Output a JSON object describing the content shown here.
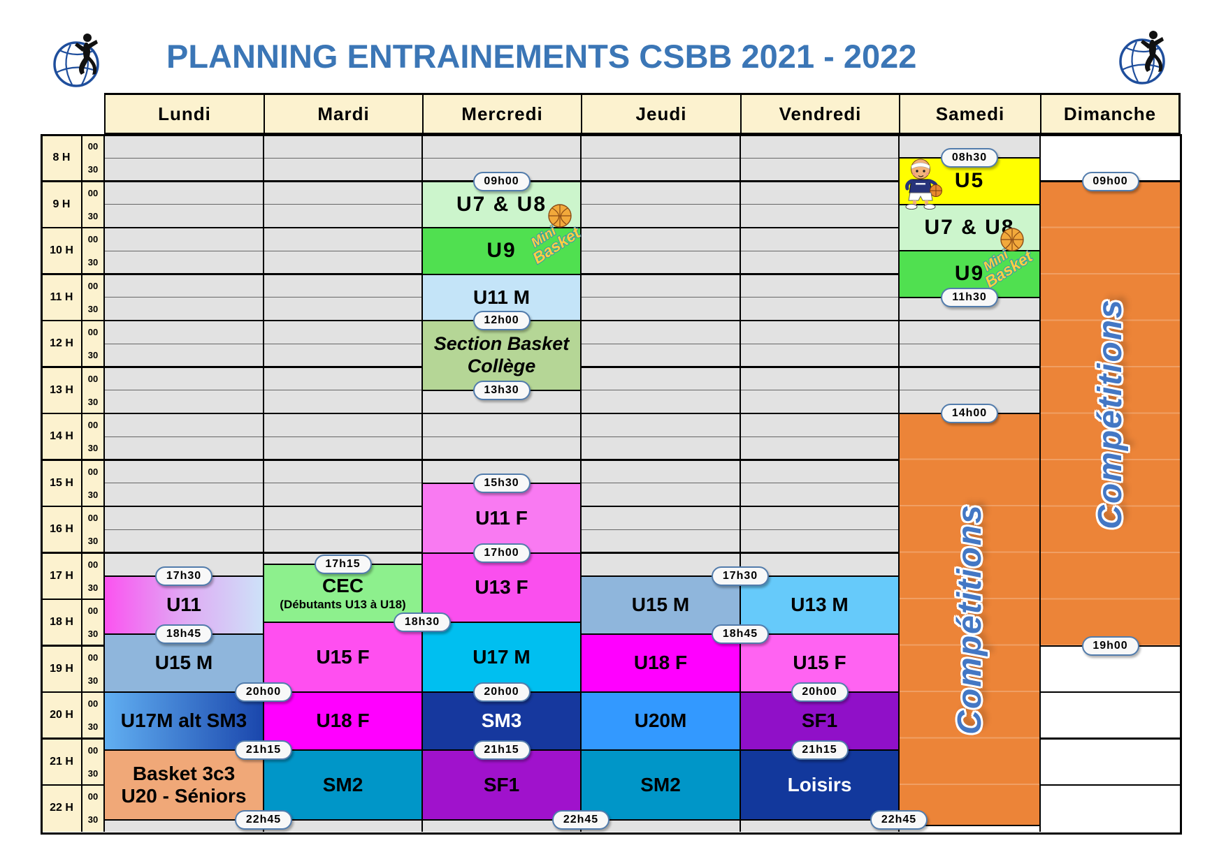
{
  "title": "PLANNING ENTRAINEMENTS CSBB 2021 - 2022",
  "days": [
    "Lundi",
    "Mardi",
    "Mercredi",
    "Jeudi",
    "Vendredi",
    "Samedi",
    "Dimanche"
  ],
  "hour_rows": [
    "8 H",
    "9 H",
    "10 H",
    "11 H",
    "12 H",
    "13 H",
    "14 H",
    "15 H",
    "16 H",
    "17 H",
    "18 H",
    "19 H",
    "20 H",
    "21 H",
    "22 H"
  ],
  "half_hour_labels": [
    "00",
    "30"
  ],
  "palette": {
    "title_blue": "#3B76B6",
    "header_cream": "#FCF2CF",
    "grid_grey": "#E2E2E2",
    "sunday_white": "#FFFFFF",
    "competitions_orange": "#EC8438",
    "competitions_text_blue": "#4377C4",
    "badge_border_blue": "#527CAC"
  },
  "sessions": [
    {
      "day": 0,
      "start": 17.5,
      "end": 18.75,
      "label": "U11",
      "bg": "linear-gradient(90deg,#FB52F0 0%,#E0A9F4 50%,#CDE2F8 100%)"
    },
    {
      "day": 0,
      "start": 18.75,
      "end": 20,
      "label": "U15 M",
      "bg": "#8FB6DC"
    },
    {
      "day": 0,
      "start": 20,
      "end": 21.25,
      "label": "U17M alt SM3",
      "bg": "linear-gradient(90deg,#62B0F2 0%,#1A46AC 100%)"
    },
    {
      "day": 0,
      "start": 21.25,
      "end": 22.75,
      "label": "Basket 3c3",
      "label2": "U20 - Séniors",
      "bg": "#F0A878"
    },
    {
      "day": 1,
      "start": 17.25,
      "end": 18.5,
      "label": "CEC",
      "label2": "(Débutants U13 à U18)",
      "bg": "#8DF08D",
      "style": "cec"
    },
    {
      "day": 1,
      "start": 18.5,
      "end": 20,
      "label": "U15 F",
      "bg": "#FF4FF0"
    },
    {
      "day": 1,
      "start": 20,
      "end": 21.25,
      "label": "U18 F",
      "bg": "#FF00FF"
    },
    {
      "day": 1,
      "start": 21.25,
      "end": 22.75,
      "label": "SM2",
      "bg": "#0096C8"
    },
    {
      "day": 2,
      "start": 9,
      "end": 10,
      "label": "U7 & U8",
      "bg": "#CCF5CC",
      "style": "deco"
    },
    {
      "day": 2,
      "start": 10,
      "end": 11,
      "label": "U9",
      "bg": "#50E050",
      "style": "deco"
    },
    {
      "day": 2,
      "start": 11,
      "end": 12,
      "label": "U11 M",
      "bg": "#C4E4F8"
    },
    {
      "day": 2,
      "start": 12,
      "end": 13.5,
      "label": "Section Basket",
      "label2": "Collège",
      "bg": "#B5D696",
      "style": "italic"
    },
    {
      "day": 2,
      "start": 15.5,
      "end": 17,
      "label": "U11 F",
      "bg": "#F97AF2"
    },
    {
      "day": 2,
      "start": 17,
      "end": 18.5,
      "label": "U13 F",
      "bg": "#FA4FEE"
    },
    {
      "day": 2,
      "start": 18.5,
      "end": 20,
      "label": "U17 M",
      "bg": "#00BFF0"
    },
    {
      "day": 2,
      "start": 20,
      "end": 21.25,
      "label": "SM3",
      "bg": "#16389E",
      "color": "#FFFFFF"
    },
    {
      "day": 2,
      "start": 21.25,
      "end": 22.75,
      "label": "SF1",
      "bg": "#A012CC"
    },
    {
      "day": 3,
      "start": 17.5,
      "end": 18.75,
      "label": "U15 M",
      "bg": "#8FB6DC"
    },
    {
      "day": 3,
      "start": 18.75,
      "end": 20,
      "label": "U18 F",
      "bg": "#FF00FF"
    },
    {
      "day": 3,
      "start": 20,
      "end": 21.25,
      "label": "U20M",
      "bg": "#3399FF"
    },
    {
      "day": 3,
      "start": 21.25,
      "end": 22.75,
      "label": "SM2",
      "bg": "#0096C8"
    },
    {
      "day": 4,
      "start": 17.5,
      "end": 18.75,
      "label": "U13 M",
      "bg": "#66CAFA"
    },
    {
      "day": 4,
      "start": 18.75,
      "end": 20,
      "label": "U15 F",
      "bg": "#FF63F2"
    },
    {
      "day": 4,
      "start": 20,
      "end": 21.25,
      "label": "SF1",
      "bg": "#9010C8"
    },
    {
      "day": 4,
      "start": 21.25,
      "end": 22.75,
      "label": "Loisirs",
      "bg": "#12389C",
      "color": "#FFFFFF"
    },
    {
      "day": 5,
      "start": 8.5,
      "end": 9.5,
      "label": "U5",
      "bg": "#FFFF00",
      "style": "deco"
    },
    {
      "day": 5,
      "start": 9.5,
      "end": 10.5,
      "label": "U7 & U8",
      "bg": "#CCF5CC",
      "style": "deco"
    },
    {
      "day": 5,
      "start": 10.5,
      "end": 11.5,
      "label": "U9",
      "bg": "#50E050",
      "style": "deco"
    },
    {
      "day": 5,
      "start": 14,
      "end": 22.87,
      "label": "Compétitions",
      "bg": "#EC8438",
      "style": "vertical"
    },
    {
      "day": 6,
      "start": 9,
      "end": 19,
      "label": "Compétitions",
      "bg": "#EC8438",
      "style": "vertical"
    }
  ],
  "badges": [
    {
      "day": 0,
      "time": "17h30",
      "anchor": "center"
    },
    {
      "day": 0,
      "time": "18h45",
      "anchor": "center"
    },
    {
      "day": 0,
      "time": "20h00",
      "anchor": "right"
    },
    {
      "day": 0,
      "time": "21h15",
      "anchor": "right"
    },
    {
      "day": 0,
      "time": "22h45",
      "anchor": "right"
    },
    {
      "day": 1,
      "time": "17h15",
      "anchor": "center"
    },
    {
      "day": 1,
      "time": "18h30",
      "anchor": "right"
    },
    {
      "day": 2,
      "time": "09h00",
      "anchor": "center"
    },
    {
      "day": 2,
      "time": "12h00",
      "anchor": "center"
    },
    {
      "day": 2,
      "time": "13h30",
      "anchor": "center"
    },
    {
      "day": 2,
      "time": "15h30",
      "anchor": "center"
    },
    {
      "day": 2,
      "time": "17h00",
      "anchor": "center"
    },
    {
      "day": 2,
      "time": "20h00",
      "anchor": "center"
    },
    {
      "day": 2,
      "time": "21h15",
      "anchor": "center"
    },
    {
      "day": 2,
      "time": "22h45",
      "anchor": "right"
    },
    {
      "day": 3,
      "time": "17h30",
      "anchor": "right"
    },
    {
      "day": 3,
      "time": "18h45",
      "anchor": "right"
    },
    {
      "day": 4,
      "time": "20h00",
      "anchor": "center"
    },
    {
      "day": 4,
      "time": "21h15",
      "anchor": "center"
    },
    {
      "day": 4,
      "time": "22h45",
      "anchor": "right"
    },
    {
      "day": 5,
      "time": "08h30",
      "anchor": "center"
    },
    {
      "day": 5,
      "time": "11h30",
      "anchor": "center"
    },
    {
      "day": 5,
      "time": "14h00",
      "anchor": "center"
    },
    {
      "day": 6,
      "time": "09h00",
      "anchor": "center"
    },
    {
      "day": 6,
      "time": "19h00",
      "anchor": "center"
    }
  ],
  "decorations": {
    "club_logo": "basketball-club-logo",
    "mascot": "kid-basketball-mascot",
    "mini_basket": {
      "line1": "Mini",
      "line2": "Basket"
    }
  }
}
